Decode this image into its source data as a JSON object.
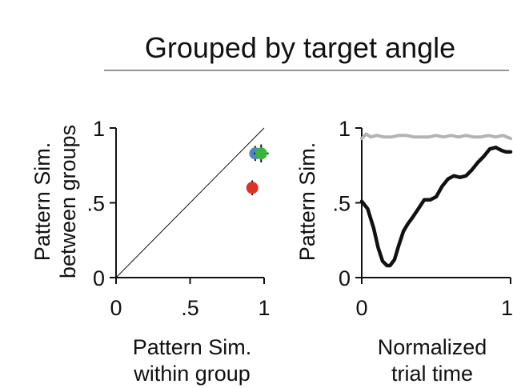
{
  "figure": {
    "title": "Grouped by target angle"
  },
  "chart_data": [
    {
      "type": "scatter",
      "xlabel": [
        "Pattern Sim.",
        "within group"
      ],
      "ylabel": [
        "Pattern Sim.",
        "between groups"
      ],
      "xlim": [
        0,
        1
      ],
      "ylim": [
        0,
        1
      ],
      "xticks": [
        0,
        0.5,
        1
      ],
      "xtick_labels": [
        "0",
        ".5",
        "1"
      ],
      "yticks": [
        0,
        0.5,
        1
      ],
      "ytick_labels": [
        "0",
        ".5",
        "1"
      ],
      "identity_line": true,
      "points": [
        {
          "x": 0.94,
          "y": 0.83,
          "xerr": 0.04,
          "yerr": 0.05,
          "color": "#4f86c6"
        },
        {
          "x": 0.98,
          "y": 0.83,
          "xerr": 0.05,
          "yerr": 0.06,
          "color": "#3cb43c"
        },
        {
          "x": 0.92,
          "y": 0.6,
          "xerr": 0.03,
          "yerr": 0.05,
          "color": "#dd3322"
        }
      ]
    },
    {
      "type": "line",
      "xlabel": [
        "Normalized",
        "trial time"
      ],
      "ylabel": [
        "Pattern Sim."
      ],
      "xlim": [
        0,
        1
      ],
      "ylim": [
        0,
        1
      ],
      "xticks": [
        0,
        1
      ],
      "xtick_labels": [
        "0",
        "1"
      ],
      "yticks": [
        0,
        0.5,
        1
      ],
      "ytick_labels": [
        "0",
        ".5",
        "1"
      ],
      "series": [
        {
          "color": "#b3b3b3",
          "x": [
            0,
            0.03,
            0.06,
            0.1,
            0.15,
            0.2,
            0.25,
            0.3,
            0.35,
            0.4,
            0.45,
            0.5,
            0.55,
            0.6,
            0.65,
            0.7,
            0.75,
            0.8,
            0.85,
            0.9,
            0.95,
            1.0
          ],
          "y": [
            0.93,
            0.96,
            0.94,
            0.95,
            0.94,
            0.94,
            0.95,
            0.95,
            0.94,
            0.94,
            0.94,
            0.95,
            0.94,
            0.95,
            0.94,
            0.95,
            0.94,
            0.94,
            0.95,
            0.94,
            0.95,
            0.93
          ]
        },
        {
          "color": "#111111",
          "x": [
            0,
            0.04,
            0.08,
            0.11,
            0.14,
            0.17,
            0.19,
            0.22,
            0.25,
            0.28,
            0.31,
            0.34,
            0.38,
            0.42,
            0.46,
            0.5,
            0.54,
            0.58,
            0.62,
            0.66,
            0.7,
            0.74,
            0.78,
            0.82,
            0.86,
            0.9,
            0.94,
            0.97,
            1.0
          ],
          "y": [
            0.51,
            0.46,
            0.33,
            0.2,
            0.11,
            0.08,
            0.08,
            0.12,
            0.22,
            0.31,
            0.36,
            0.4,
            0.46,
            0.52,
            0.52,
            0.54,
            0.61,
            0.66,
            0.68,
            0.67,
            0.68,
            0.72,
            0.77,
            0.81,
            0.86,
            0.87,
            0.85,
            0.84,
            0.84
          ]
        }
      ]
    }
  ]
}
